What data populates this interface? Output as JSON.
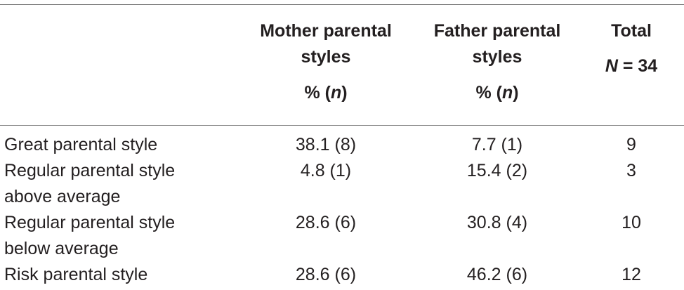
{
  "table": {
    "headers": {
      "mother": {
        "line1": "Mother parental",
        "line2": "styles",
        "unit_pre": "% (",
        "unit_n": "n",
        "unit_post": ")"
      },
      "father": {
        "line1": "Father parental",
        "line2": "styles",
        "unit_pre": "% (",
        "unit_n": "n",
        "unit_post": ")"
      },
      "total": {
        "line1": "Total",
        "n_symbol": "N",
        "n_value": " = 34"
      }
    },
    "rows": [
      {
        "label_line1": "Great parental style",
        "label_line2": "",
        "mother": "38.1 (8)",
        "father": "7.7 (1)",
        "total": "9"
      },
      {
        "label_line1": "Regular parental style",
        "label_line2": "above average",
        "mother": "4.8 (1)",
        "father": "15.4 (2)",
        "total": "3"
      },
      {
        "label_line1": "Regular parental style",
        "label_line2": "below average",
        "mother": "28.6 (6)",
        "father": "30.8 (4)",
        "total": "10"
      },
      {
        "label_line1": "Risk parental style",
        "label_line2": "",
        "mother": "28.6 (6)",
        "father": "46.2 (6)",
        "total": "12"
      }
    ]
  }
}
